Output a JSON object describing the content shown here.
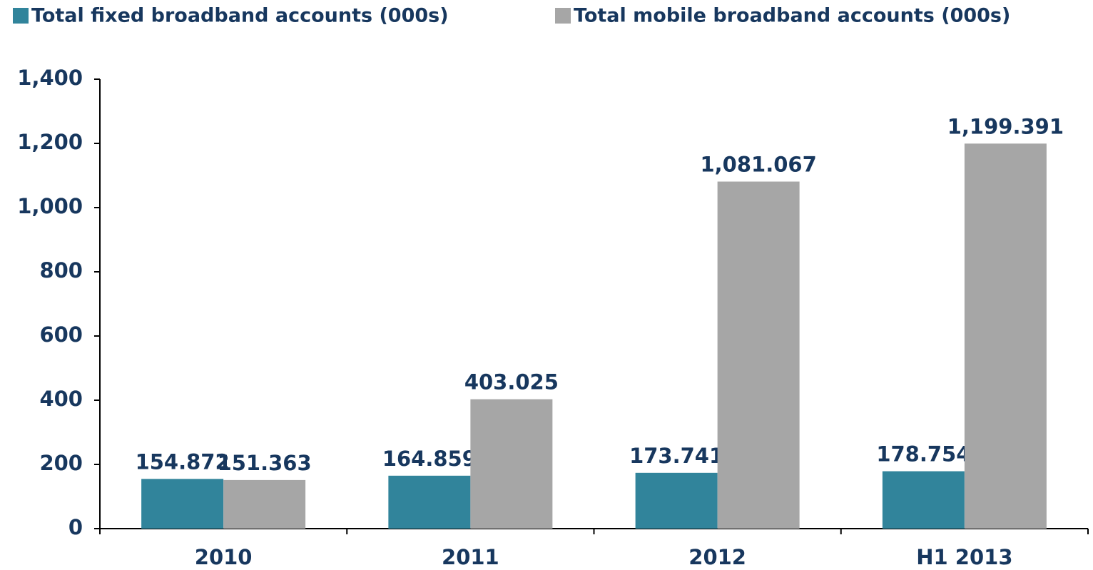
{
  "chart_data": {
    "type": "bar",
    "categories": [
      "2010",
      "2011",
      "2012",
      "H1 2013"
    ],
    "series": [
      {
        "name": "Total fixed broadband accounts (000s)",
        "color": "#31849b",
        "values": [
          154.872,
          164.859,
          173.741,
          178.754
        ]
      },
      {
        "name": "Total mobile broadband accounts (000s)",
        "color": "#a6a6a6",
        "values": [
          151.363,
          403.025,
          1081.067,
          1199.391
        ],
        "value_labels": [
          "151.363",
          "403.025",
          "1,081.067",
          "1,199.391"
        ]
      }
    ],
    "ylim": [
      0,
      1400
    ],
    "yticks": [
      0,
      200,
      400,
      600,
      800,
      {
        "value": 1000,
        "label": "1,000"
      },
      {
        "value": 1200,
        "label": "1,200"
      },
      {
        "value": 1400,
        "label": "1,400"
      }
    ],
    "legend": "top",
    "grid": false
  }
}
